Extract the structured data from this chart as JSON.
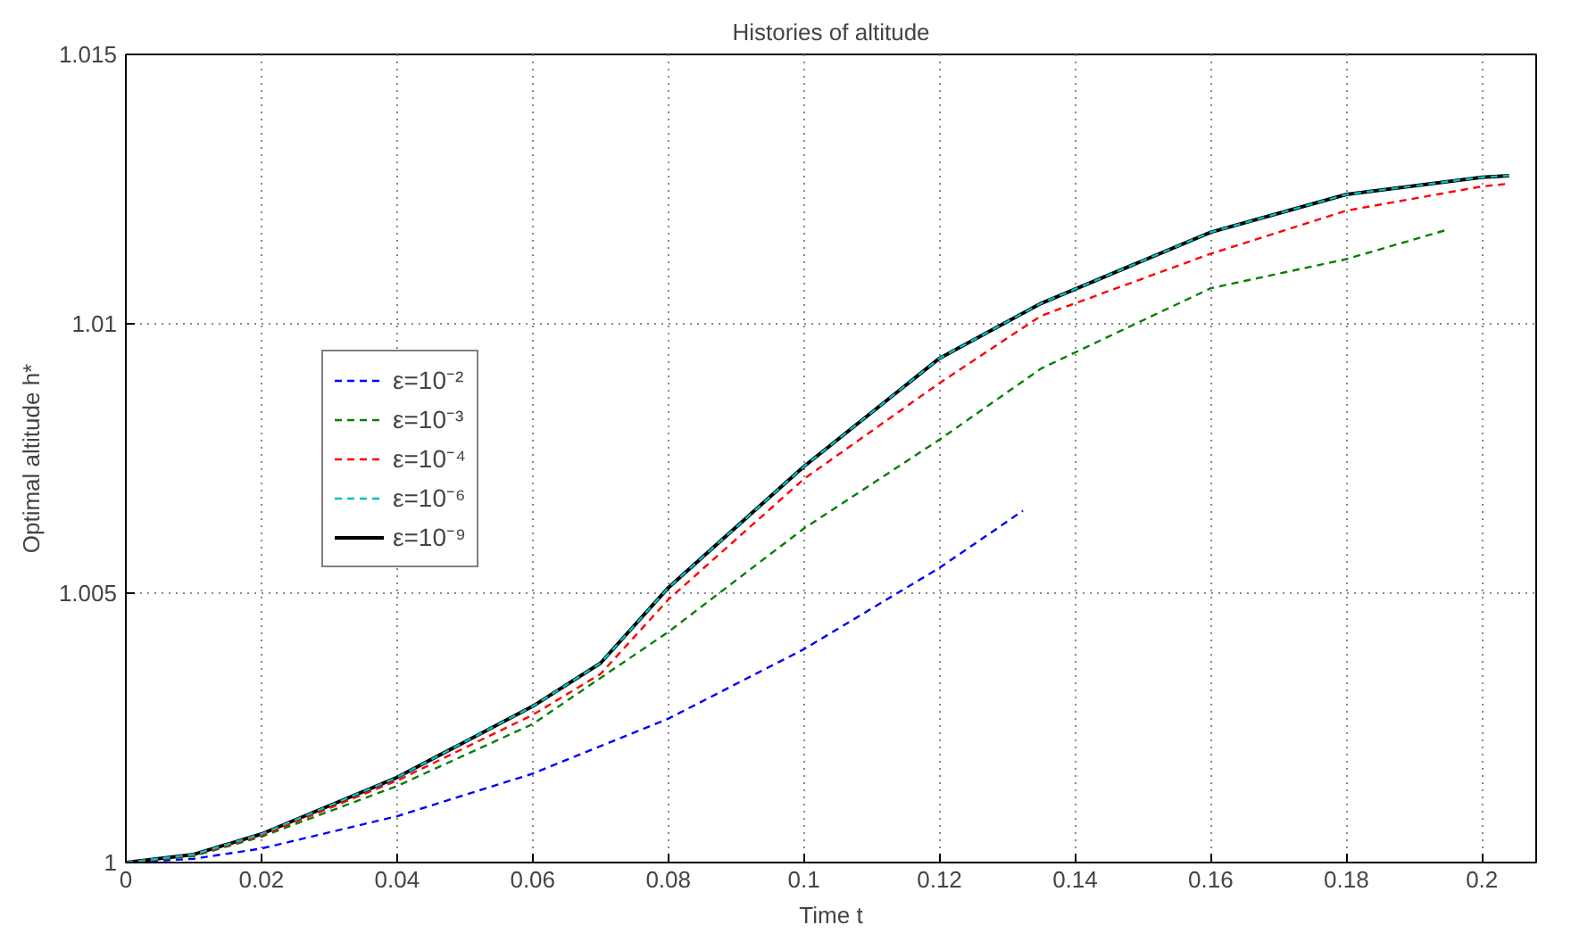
{
  "chart_data": {
    "type": "line",
    "title": "Histories of altitude",
    "xlabel": "Time t",
    "ylabel": "Optimal altitude h*",
    "xlim": [
      0,
      0.208
    ],
    "ylim": [
      1,
      1.015
    ],
    "xticks": [
      0,
      0.02,
      0.04,
      0.06,
      0.08,
      0.1,
      0.12,
      0.14,
      0.16,
      0.18,
      0.2
    ],
    "yticks": [
      1,
      1.005,
      1.01,
      1.015
    ],
    "grid": true,
    "legend": "left",
    "marker": "none",
    "series": [
      {
        "name": "ε=10⁻²",
        "color": "#0000ff",
        "line_style": "dashed",
        "x": [
          0,
          0.01,
          0.02,
          0.04,
          0.06,
          0.08,
          0.1,
          0.12,
          0.1323
        ],
        "values": [
          1,
          1.00007,
          1.00026,
          1.00086,
          1.00165,
          1.00267,
          1.00396,
          1.00547,
          1.00653
        ]
      },
      {
        "name": "ε=10⁻³",
        "color": "#008000",
        "line_style": "dashed",
        "x": [
          0,
          0.01,
          0.02,
          0.04,
          0.06,
          0.08,
          0.1,
          0.12,
          0.135,
          0.16,
          0.18,
          0.195
        ],
        "values": [
          1,
          1.00012,
          1.00048,
          1.00142,
          1.00257,
          1.00428,
          1.0062,
          1.00785,
          1.00917,
          1.01066,
          1.0112,
          1.01175
        ]
      },
      {
        "name": "ε=10⁻⁴",
        "color": "#ff0000",
        "line_style": "dashed",
        "x": [
          0,
          0.01,
          0.02,
          0.04,
          0.06,
          0.07,
          0.08,
          0.1,
          0.12,
          0.135,
          0.16,
          0.18,
          0.2,
          0.204
        ],
        "values": [
          1,
          1.00014,
          1.0005,
          1.00152,
          1.00274,
          1.0035,
          1.00488,
          1.00712,
          1.0089,
          1.01015,
          1.0113,
          1.0121,
          1.01255,
          1.0126
        ]
      },
      {
        "name": "ε=10⁻⁶",
        "color": "#00bfbf",
        "line_style": "dashed",
        "x": [
          0,
          0.01,
          0.02,
          0.04,
          0.06,
          0.07,
          0.08,
          0.1,
          0.12,
          0.135,
          0.16,
          0.18,
          0.2,
          0.204
        ],
        "values": [
          1,
          1.00015,
          1.00053,
          1.00158,
          1.0029,
          1.0037,
          1.0051,
          1.00735,
          1.00936,
          1.01038,
          1.0117,
          1.0124,
          1.01272,
          1.01275
        ]
      },
      {
        "name": "ε=10⁻⁹",
        "color": "#000000",
        "line_style": "solid",
        "x": [
          0,
          0.01,
          0.02,
          0.04,
          0.06,
          0.07,
          0.08,
          0.1,
          0.12,
          0.135,
          0.16,
          0.18,
          0.2,
          0.204
        ],
        "values": [
          1,
          1.00015,
          1.00053,
          1.00158,
          1.0029,
          1.0037,
          1.0051,
          1.00735,
          1.00936,
          1.01038,
          1.0117,
          1.0124,
          1.01272,
          1.01275
        ]
      }
    ]
  }
}
